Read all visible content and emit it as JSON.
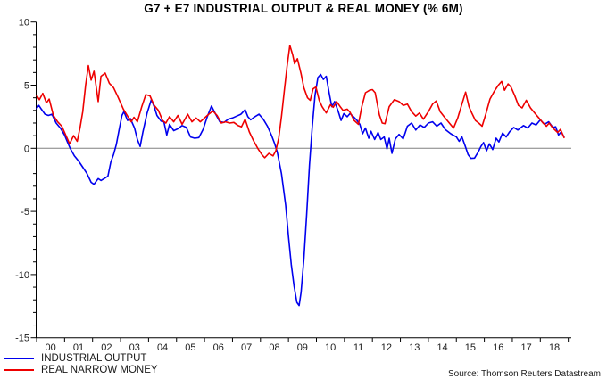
{
  "chart_data": {
    "type": "line",
    "title": "G7 + E7 INDUSTRIAL OUTPUT & REAL MONEY (% 6M)",
    "source": "Source: Thomson Reuters Datastream",
    "legend_position": "bottom-left",
    "grid": "zero-line-only",
    "colors": {
      "axis": "#000000",
      "text": "#1a1a1a",
      "zero_line": "#808080",
      "background": "#ffffff"
    },
    "x_axis": {
      "min": 2000,
      "max": 2019,
      "tick_years": [
        2000,
        2001,
        2002,
        2003,
        2004,
        2005,
        2006,
        2007,
        2008,
        2009,
        2010,
        2011,
        2012,
        2013,
        2014,
        2015,
        2016,
        2017,
        2018,
        2019
      ],
      "tick_labels": [
        "00",
        "01",
        "02",
        "03",
        "04",
        "05",
        "06",
        "07",
        "08",
        "09",
        "10",
        "11",
        "12",
        "13",
        "14",
        "15",
        "16",
        "17",
        "18"
      ]
    },
    "y_axis": {
      "min": -15,
      "max": 10,
      "major_step": 5,
      "minor_step": 1,
      "major_ticks": [
        -15,
        -10,
        -5,
        0,
        5,
        10
      ],
      "zero_line": true
    },
    "series": [
      {
        "name": "INDUSTRIAL OUTPUT",
        "color": "#0000ee",
        "points": [
          [
            2000.0,
            3.15
          ],
          [
            2000.08,
            3.4
          ],
          [
            2000.17,
            3.1
          ],
          [
            2000.3,
            2.7
          ],
          [
            2000.42,
            2.6
          ],
          [
            2000.55,
            2.7
          ],
          [
            2000.7,
            2.0
          ],
          [
            2000.85,
            1.6
          ],
          [
            2001.0,
            1.05
          ],
          [
            2001.1,
            0.5
          ],
          [
            2001.2,
            0.0
          ],
          [
            2001.35,
            -0.6
          ],
          [
            2001.5,
            -1.0
          ],
          [
            2001.65,
            -1.5
          ],
          [
            2001.8,
            -2.0
          ],
          [
            2001.95,
            -2.7
          ],
          [
            2002.05,
            -2.85
          ],
          [
            2002.2,
            -2.4
          ],
          [
            2002.3,
            -2.55
          ],
          [
            2002.45,
            -2.35
          ],
          [
            2002.55,
            -2.2
          ],
          [
            2002.65,
            -1.1
          ],
          [
            2002.75,
            -0.5
          ],
          [
            2002.85,
            0.3
          ],
          [
            2002.95,
            1.5
          ],
          [
            2003.05,
            2.6
          ],
          [
            2003.12,
            2.9
          ],
          [
            2003.25,
            2.2
          ],
          [
            2003.35,
            2.35
          ],
          [
            2003.5,
            1.6
          ],
          [
            2003.6,
            0.7
          ],
          [
            2003.7,
            0.15
          ],
          [
            2003.8,
            1.3
          ],
          [
            2003.95,
            2.8
          ],
          [
            2004.1,
            3.85
          ],
          [
            2004.2,
            3.3
          ],
          [
            2004.3,
            2.6
          ],
          [
            2004.45,
            2.15
          ],
          [
            2004.55,
            2.1
          ],
          [
            2004.65,
            1.05
          ],
          [
            2004.75,
            1.9
          ],
          [
            2004.9,
            1.4
          ],
          [
            2005.05,
            1.55
          ],
          [
            2005.2,
            1.8
          ],
          [
            2005.35,
            1.65
          ],
          [
            2005.5,
            0.9
          ],
          [
            2005.65,
            0.8
          ],
          [
            2005.8,
            0.85
          ],
          [
            2005.95,
            1.5
          ],
          [
            2006.1,
            2.5
          ],
          [
            2006.25,
            3.35
          ],
          [
            2006.4,
            2.7
          ],
          [
            2006.55,
            2.1
          ],
          [
            2006.7,
            2.05
          ],
          [
            2006.85,
            2.3
          ],
          [
            2007.0,
            2.4
          ],
          [
            2007.15,
            2.55
          ],
          [
            2007.3,
            2.7
          ],
          [
            2007.45,
            3.05
          ],
          [
            2007.55,
            2.5
          ],
          [
            2007.65,
            2.25
          ],
          [
            2007.8,
            2.5
          ],
          [
            2007.95,
            2.7
          ],
          [
            2008.1,
            2.3
          ],
          [
            2008.25,
            1.75
          ],
          [
            2008.4,
            1.0
          ],
          [
            2008.5,
            0.4
          ],
          [
            2008.6,
            -0.3
          ],
          [
            2008.75,
            -2.0
          ],
          [
            2008.9,
            -4.5
          ],
          [
            2009.0,
            -7.0
          ],
          [
            2009.1,
            -9.2
          ],
          [
            2009.2,
            -10.9
          ],
          [
            2009.3,
            -12.2
          ],
          [
            2009.38,
            -12.45
          ],
          [
            2009.45,
            -11.4
          ],
          [
            2009.55,
            -8.8
          ],
          [
            2009.65,
            -5.3
          ],
          [
            2009.75,
            -1.3
          ],
          [
            2009.85,
            1.7
          ],
          [
            2009.95,
            4.2
          ],
          [
            2010.05,
            5.6
          ],
          [
            2010.15,
            5.85
          ],
          [
            2010.25,
            5.45
          ],
          [
            2010.35,
            5.7
          ],
          [
            2010.45,
            4.45
          ],
          [
            2010.55,
            3.3
          ],
          [
            2010.65,
            3.7
          ],
          [
            2010.78,
            2.9
          ],
          [
            2010.88,
            2.2
          ],
          [
            2010.98,
            2.75
          ],
          [
            2011.1,
            2.5
          ],
          [
            2011.2,
            2.75
          ],
          [
            2011.3,
            2.55
          ],
          [
            2011.45,
            2.2
          ],
          [
            2011.55,
            1.9
          ],
          [
            2011.65,
            1.15
          ],
          [
            2011.75,
            1.6
          ],
          [
            2011.87,
            0.8
          ],
          [
            2011.95,
            1.35
          ],
          [
            2012.08,
            0.7
          ],
          [
            2012.2,
            1.25
          ],
          [
            2012.3,
            0.7
          ],
          [
            2012.42,
            0.9
          ],
          [
            2012.52,
            -0.05
          ],
          [
            2012.6,
            0.8
          ],
          [
            2012.7,
            -0.4
          ],
          [
            2012.82,
            0.75
          ],
          [
            2012.95,
            1.1
          ],
          [
            2013.1,
            0.75
          ],
          [
            2013.25,
            1.75
          ],
          [
            2013.4,
            2.0
          ],
          [
            2013.55,
            1.45
          ],
          [
            2013.7,
            1.85
          ],
          [
            2013.85,
            1.65
          ],
          [
            2014.0,
            2.0
          ],
          [
            2014.15,
            2.1
          ],
          [
            2014.3,
            1.75
          ],
          [
            2014.45,
            2.0
          ],
          [
            2014.6,
            1.5
          ],
          [
            2014.8,
            1.15
          ],
          [
            2015.0,
            0.9
          ],
          [
            2015.1,
            0.55
          ],
          [
            2015.2,
            0.9
          ],
          [
            2015.32,
            0.15
          ],
          [
            2015.42,
            -0.5
          ],
          [
            2015.52,
            -0.8
          ],
          [
            2015.65,
            -0.78
          ],
          [
            2015.78,
            -0.3
          ],
          [
            2015.88,
            0.15
          ],
          [
            2015.97,
            0.45
          ],
          [
            2016.08,
            -0.2
          ],
          [
            2016.18,
            0.35
          ],
          [
            2016.3,
            -0.1
          ],
          [
            2016.42,
            0.8
          ],
          [
            2016.52,
            0.5
          ],
          [
            2016.65,
            1.2
          ],
          [
            2016.78,
            0.9
          ],
          [
            2016.9,
            1.3
          ],
          [
            2017.05,
            1.65
          ],
          [
            2017.2,
            1.45
          ],
          [
            2017.4,
            1.8
          ],
          [
            2017.55,
            1.6
          ],
          [
            2017.7,
            2.0
          ],
          [
            2017.85,
            1.85
          ],
          [
            2018.0,
            2.25
          ],
          [
            2018.15,
            1.9
          ],
          [
            2018.3,
            2.1
          ],
          [
            2018.45,
            1.65
          ],
          [
            2018.55,
            1.7
          ],
          [
            2018.65,
            1.05
          ],
          [
            2018.75,
            1.3
          ],
          [
            2018.85,
            0.9
          ]
        ]
      },
      {
        "name": "REAL NARROW MONEY",
        "color": "#ee0000",
        "points": [
          [
            2000.0,
            4.2
          ],
          [
            2000.1,
            3.85
          ],
          [
            2000.22,
            4.35
          ],
          [
            2000.35,
            3.6
          ],
          [
            2000.45,
            3.9
          ],
          [
            2000.6,
            2.6
          ],
          [
            2000.75,
            2.1
          ],
          [
            2000.9,
            1.75
          ],
          [
            2001.05,
            1.0
          ],
          [
            2001.18,
            0.35
          ],
          [
            2001.32,
            1.0
          ],
          [
            2001.45,
            0.55
          ],
          [
            2001.55,
            1.6
          ],
          [
            2001.65,
            2.9
          ],
          [
            2001.75,
            5.0
          ],
          [
            2001.85,
            6.55
          ],
          [
            2001.95,
            5.4
          ],
          [
            2002.05,
            6.1
          ],
          [
            2002.12,
            5.0
          ],
          [
            2002.2,
            3.7
          ],
          [
            2002.3,
            5.7
          ],
          [
            2002.45,
            5.95
          ],
          [
            2002.6,
            5.15
          ],
          [
            2002.75,
            4.8
          ],
          [
            2002.9,
            4.1
          ],
          [
            2003.1,
            3.1
          ],
          [
            2003.25,
            2.55
          ],
          [
            2003.38,
            2.1
          ],
          [
            2003.48,
            2.45
          ],
          [
            2003.6,
            2.1
          ],
          [
            2003.75,
            3.25
          ],
          [
            2003.9,
            4.25
          ],
          [
            2004.05,
            4.15
          ],
          [
            2004.2,
            3.4
          ],
          [
            2004.35,
            3.0
          ],
          [
            2004.5,
            2.2
          ],
          [
            2004.62,
            2.0
          ],
          [
            2004.75,
            2.5
          ],
          [
            2004.9,
            2.1
          ],
          [
            2005.05,
            2.6
          ],
          [
            2005.2,
            1.9
          ],
          [
            2005.4,
            2.7
          ],
          [
            2005.55,
            2.1
          ],
          [
            2005.7,
            2.4
          ],
          [
            2005.85,
            2.1
          ],
          [
            2006.0,
            2.4
          ],
          [
            2006.15,
            2.7
          ],
          [
            2006.3,
            2.95
          ],
          [
            2006.45,
            2.6
          ],
          [
            2006.6,
            2.0
          ],
          [
            2006.75,
            2.1
          ],
          [
            2006.9,
            2.0
          ],
          [
            2007.05,
            2.05
          ],
          [
            2007.2,
            1.8
          ],
          [
            2007.32,
            1.7
          ],
          [
            2007.45,
            2.3
          ],
          [
            2007.6,
            1.3
          ],
          [
            2007.75,
            0.6
          ],
          [
            2007.9,
            0.0
          ],
          [
            2008.05,
            -0.5
          ],
          [
            2008.15,
            -0.75
          ],
          [
            2008.3,
            -0.4
          ],
          [
            2008.45,
            -0.6
          ],
          [
            2008.55,
            -0.2
          ],
          [
            2008.65,
            0.8
          ],
          [
            2008.75,
            2.5
          ],
          [
            2008.85,
            4.5
          ],
          [
            2008.95,
            6.5
          ],
          [
            2009.05,
            8.15
          ],
          [
            2009.15,
            7.4
          ],
          [
            2009.22,
            6.7
          ],
          [
            2009.32,
            7.1
          ],
          [
            2009.45,
            5.9
          ],
          [
            2009.55,
            4.8
          ],
          [
            2009.68,
            4.0
          ],
          [
            2009.78,
            3.8
          ],
          [
            2009.88,
            4.7
          ],
          [
            2009.98,
            4.85
          ],
          [
            2010.1,
            3.8
          ],
          [
            2010.2,
            3.3
          ],
          [
            2010.35,
            2.8
          ],
          [
            2010.5,
            3.45
          ],
          [
            2010.6,
            3.25
          ],
          [
            2010.72,
            3.7
          ],
          [
            2010.85,
            3.3
          ],
          [
            2010.95,
            3.0
          ],
          [
            2011.1,
            3.1
          ],
          [
            2011.2,
            2.85
          ],
          [
            2011.35,
            2.2
          ],
          [
            2011.5,
            1.9
          ],
          [
            2011.62,
            3.3
          ],
          [
            2011.75,
            4.4
          ],
          [
            2011.9,
            4.6
          ],
          [
            2012.0,
            4.65
          ],
          [
            2012.1,
            4.4
          ],
          [
            2012.25,
            2.65
          ],
          [
            2012.35,
            2.0
          ],
          [
            2012.45,
            1.95
          ],
          [
            2012.6,
            3.3
          ],
          [
            2012.78,
            3.85
          ],
          [
            2012.95,
            3.7
          ],
          [
            2013.1,
            3.4
          ],
          [
            2013.25,
            3.5
          ],
          [
            2013.4,
            2.9
          ],
          [
            2013.55,
            2.55
          ],
          [
            2013.68,
            2.8
          ],
          [
            2013.82,
            2.3
          ],
          [
            2014.0,
            2.9
          ],
          [
            2014.15,
            3.5
          ],
          [
            2014.28,
            3.75
          ],
          [
            2014.42,
            2.9
          ],
          [
            2014.58,
            2.45
          ],
          [
            2014.75,
            2.0
          ],
          [
            2014.9,
            1.6
          ],
          [
            2015.05,
            2.4
          ],
          [
            2015.2,
            3.5
          ],
          [
            2015.33,
            4.45
          ],
          [
            2015.45,
            3.3
          ],
          [
            2015.55,
            2.8
          ],
          [
            2015.68,
            2.2
          ],
          [
            2015.8,
            2.0
          ],
          [
            2015.92,
            1.75
          ],
          [
            2016.05,
            2.7
          ],
          [
            2016.2,
            3.9
          ],
          [
            2016.35,
            4.5
          ],
          [
            2016.5,
            5.0
          ],
          [
            2016.62,
            5.3
          ],
          [
            2016.72,
            4.6
          ],
          [
            2016.85,
            5.1
          ],
          [
            2016.95,
            4.85
          ],
          [
            2017.08,
            4.2
          ],
          [
            2017.22,
            3.4
          ],
          [
            2017.35,
            3.2
          ],
          [
            2017.5,
            3.8
          ],
          [
            2017.65,
            3.2
          ],
          [
            2017.8,
            2.8
          ],
          [
            2017.95,
            2.4
          ],
          [
            2018.1,
            2.0
          ],
          [
            2018.22,
            1.75
          ],
          [
            2018.32,
            2.0
          ],
          [
            2018.45,
            1.6
          ],
          [
            2018.55,
            1.4
          ],
          [
            2018.62,
            1.25
          ],
          [
            2018.72,
            1.5
          ],
          [
            2018.85,
            0.85
          ]
        ]
      }
    ]
  }
}
